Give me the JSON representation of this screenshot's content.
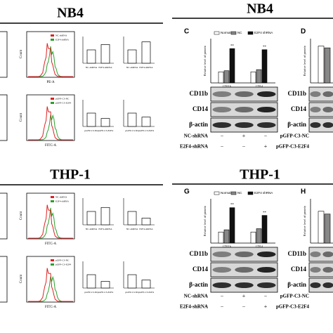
{
  "left": {
    "count_label": "Count",
    "ylim": [
      0,
      2
    ],
    "sections": [
      {
        "title": "NB4",
        "rows": [
          {
            "legend": [
              "NC shRNA",
              "E2F4 shRNA"
            ],
            "x_axis": "PE-A",
            "bar_labels": [
              "NC-shRNA",
              "E2F4-shRNA"
            ],
            "bars": [
              [
                1.0,
                1.4
              ],
              [
                1.0,
                1.6
              ]
            ]
          },
          {
            "legend": [
              "pGFP-C3-NC",
              "pGFP-C3-E2F4"
            ],
            "x_axis": "FITC-A",
            "bar_labels": [
              "pGFP-C3-NC",
              "pGFP-C3-E2F4"
            ],
            "bars": [
              [
                1.0,
                0.6
              ],
              [
                1.0,
                0.7
              ]
            ]
          }
        ]
      },
      {
        "title": "THP-1",
        "rows": [
          {
            "legend": [
              "NC shRNA",
              "E2F4 shRNA"
            ],
            "x_axis": "FITC-A",
            "bar_labels": [
              "NC-shRNA",
              "E2F4-shRNA"
            ],
            "bars": [
              [
                1.0,
                1.3
              ],
              [
                1.0,
                0.5
              ]
            ]
          },
          {
            "legend": [
              "pGFP-C3-NC",
              "pGFP-C3-E2F4"
            ],
            "x_axis": "FITC-A",
            "bar_labels": [
              "pGFP-C3-NC",
              "pGFP-C3-E2F4"
            ],
            "bars": [
              [
                1.0,
                0.5
              ],
              [
                1.0,
                0.6
              ]
            ]
          }
        ]
      }
    ]
  },
  "right": {
    "titles": [
      "NB4",
      "THP-1"
    ],
    "y_label": "Relative level of protein",
    "blots": [
      "CD11b",
      "CD14",
      "β-actin"
    ],
    "panels": [
      {
        "label": "C",
        "groups": [
          "CD11b",
          "CD14"
        ],
        "sig": "**",
        "ylim": [
          0,
          4
        ],
        "series": [
          {
            "name": "Normal",
            "color": "#ffffff",
            "values": [
              1.0,
              1.0
            ]
          },
          {
            "name": "NC",
            "color": "#888888",
            "values": [
              1.1,
              1.2
            ]
          },
          {
            "name": "E2F4 shRNA",
            "color": "#111111",
            "values": [
              3.1,
              3.0
            ]
          }
        ],
        "conditions": [
          {
            "name": "NC-shRNA",
            "signs": [
              "−",
              "+",
              "−"
            ]
          },
          {
            "name": "E2F4-shRNA",
            "signs": [
              "−",
              "−",
              "+"
            ]
          }
        ]
      },
      {
        "label": "D",
        "ylim": [
          0,
          1.2
        ],
        "series": [
          {
            "name": "Normal",
            "color": "#ffffff",
            "values": [
              1.0
            ]
          },
          {
            "name": "NC",
            "color": "#888888",
            "values": [
              0.95
            ]
          }
        ],
        "conditions": [
          {
            "name": "pGFP-C3-NC"
          },
          {
            "name": "pGFP-C3-E2F4"
          }
        ]
      },
      {
        "label": "G",
        "groups": [
          "CD11b",
          "CD14"
        ],
        "sig": "**",
        "ylim": [
          0,
          4
        ],
        "series": [
          {
            "name": "Normal",
            "color": "#ffffff",
            "values": [
              1.0,
              1.0
            ]
          },
          {
            "name": "NC",
            "color": "#888888",
            "values": [
              1.2,
              1.3
            ]
          },
          {
            "name": "E2F4 shRNA",
            "color": "#111111",
            "values": [
              3.2,
              2.5
            ]
          }
        ],
        "conditions": [
          {
            "name": "NC-shRNA",
            "signs": [
              "−",
              "+",
              "−"
            ]
          },
          {
            "name": "E2F4-shRNA",
            "signs": [
              "−",
              "−",
              "+"
            ]
          }
        ]
      },
      {
        "label": "H",
        "ylim": [
          0,
          1.6
        ],
        "series": [
          {
            "name": "Normal",
            "color": "#ffffff",
            "values": [
              1.15
            ]
          },
          {
            "name": "NC",
            "color": "#888888",
            "values": [
              1.05
            ]
          }
        ],
        "conditions": [
          {
            "name": "pGFP-C3-NC"
          },
          {
            "name": "pGFP-C3-E2F4"
          }
        ]
      }
    ]
  }
}
